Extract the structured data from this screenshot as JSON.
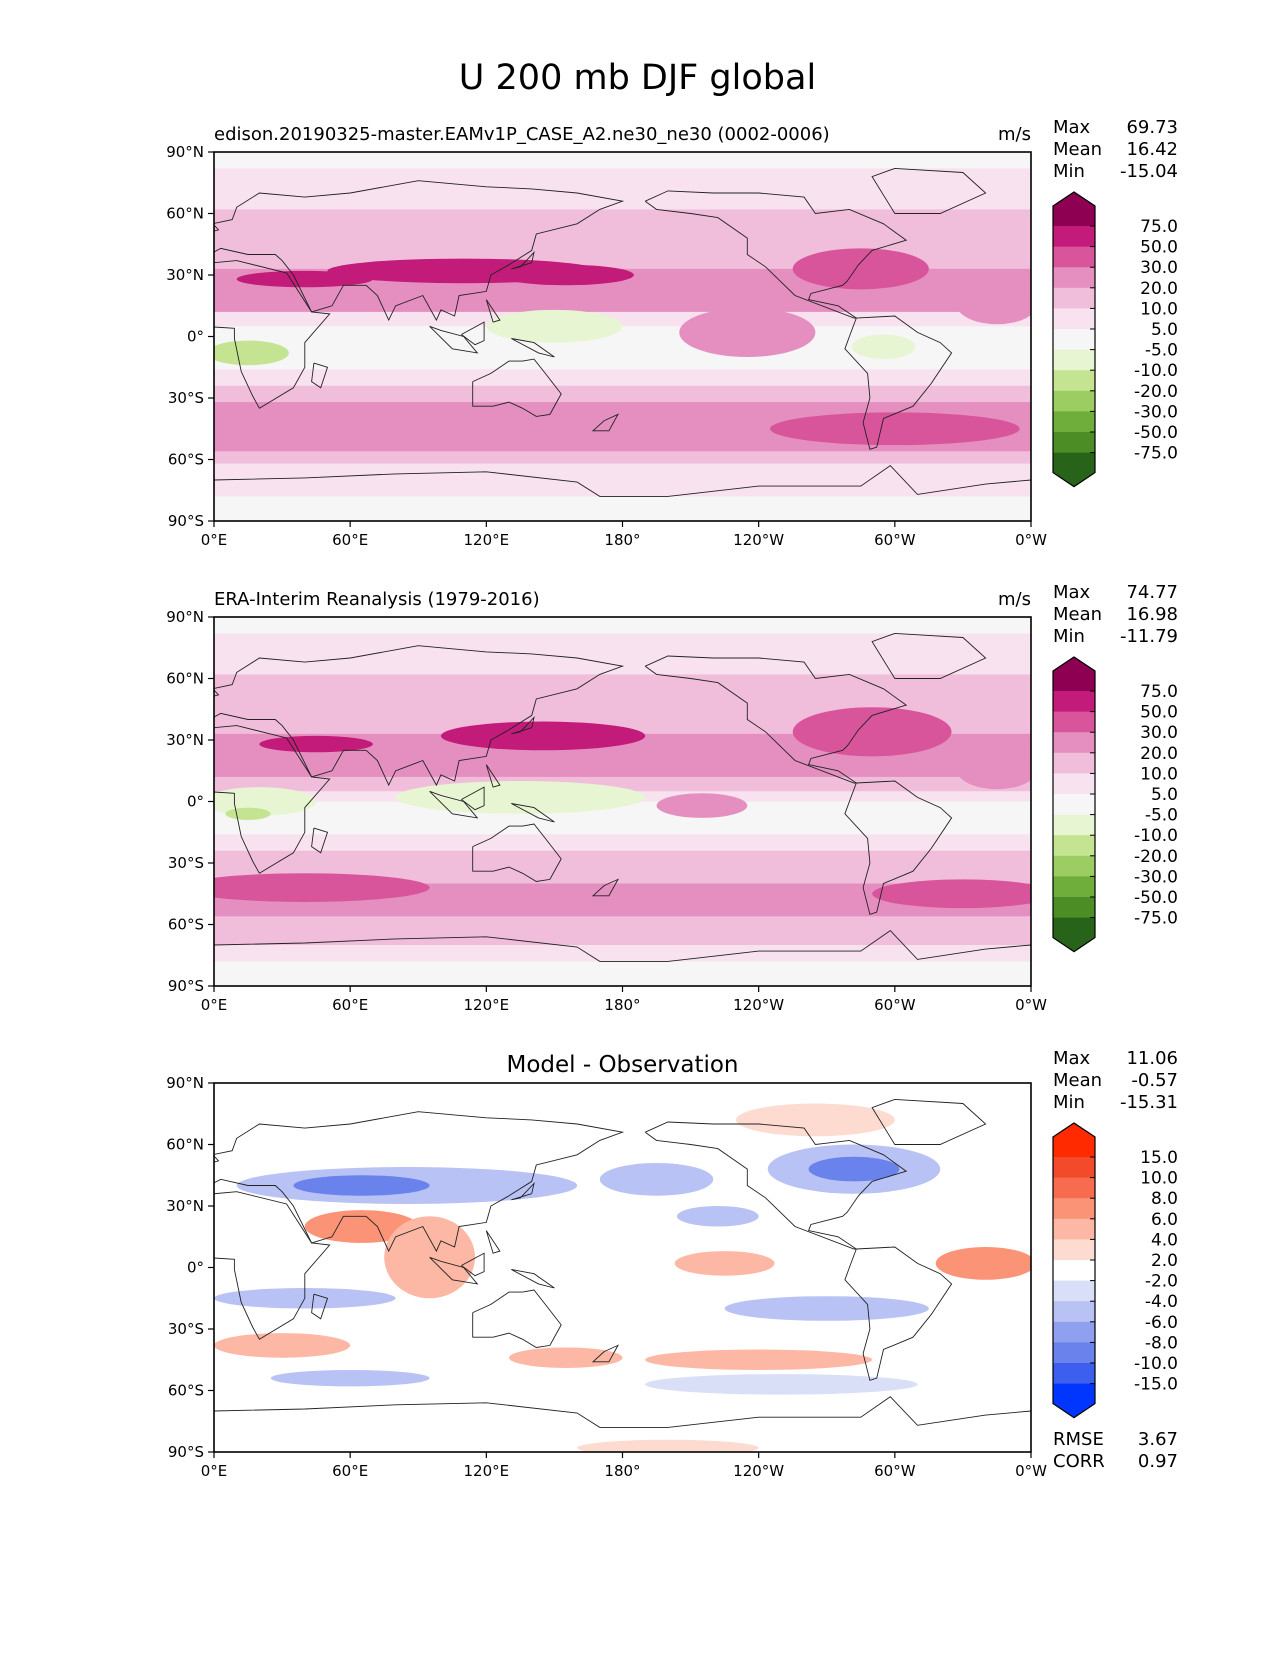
{
  "figure": {
    "title": "U 200 mb DJF global"
  },
  "chart_data": [
    {
      "type": "contour-map",
      "title": "edison.20190325-master.EAMv1P_CASE_A2.ne30_ne30 (0002-0006)",
      "units": "m/s",
      "stats": [
        {
          "label": "Max",
          "value": "69.73"
        },
        {
          "label": "Mean",
          "value": "16.42"
        },
        {
          "label": "Min",
          "value": "-15.04"
        }
      ],
      "extra_stats": [],
      "xlabel": "",
      "ylabel": "",
      "xlim": [
        0,
        360
      ],
      "ylim": [
        -90,
        90
      ],
      "x_ticks": [
        "0°E",
        "60°E",
        "120°E",
        "180°",
        "120°W",
        "60°W",
        "0°W"
      ],
      "y_ticks": [
        "90°N",
        "60°N",
        "30°N",
        "0°",
        "30°S",
        "60°S",
        "90°S"
      ],
      "colorbar": {
        "levels": [
          "75.0",
          "50.0",
          "30.0",
          "20.0",
          "10.0",
          "5.0",
          "-5.0",
          "-10.0",
          "-20.0",
          "-30.0",
          "-50.0",
          "-75.0"
        ],
        "colors": [
          "#8e0152",
          "#c21b79",
          "#d9559b",
          "#e48fc0",
          "#f0bedb",
          "#f9e2ef",
          "#f6f6f6",
          "#e8f5d3",
          "#c4e492",
          "#9bcd63",
          "#6fae3b",
          "#4c8d26",
          "#276419"
        ]
      },
      "bands": [
        {
          "lat": 90,
          "c": 6
        },
        {
          "lat": 82,
          "c": 5
        },
        {
          "lat": 72,
          "c": 5
        },
        {
          "lat": 62,
          "c": 4
        },
        {
          "lat": 52,
          "c": 4
        },
        {
          "lat": 42,
          "c": 4
        },
        {
          "lat": 33,
          "c": 3
        },
        {
          "lat": 26,
          "c": 3
        },
        {
          "lat": 20,
          "c": 3
        },
        {
          "lat": 12,
          "c": 5
        },
        {
          "lat": 5,
          "c": 6
        },
        {
          "lat": 0,
          "c": 6
        },
        {
          "lat": -8,
          "c": 6
        },
        {
          "lat": -16,
          "c": 5
        },
        {
          "lat": -24,
          "c": 4
        },
        {
          "lat": -32,
          "c": 3
        },
        {
          "lat": -40,
          "c": 3
        },
        {
          "lat": -48,
          "c": 3
        },
        {
          "lat": -56,
          "c": 4
        },
        {
          "lat": -62,
          "c": 5
        },
        {
          "lat": -70,
          "c": 5
        },
        {
          "lat": -78,
          "c": 6
        },
        {
          "lat": -90,
          "c": 6
        }
      ],
      "blobs": [
        {
          "lon": 110,
          "lat": 32,
          "rx": 60,
          "ry": 6,
          "c": 1
        },
        {
          "lon": 40,
          "lat": 28,
          "rx": 30,
          "ry": 4,
          "c": 1
        },
        {
          "lon": 155,
          "lat": 30,
          "rx": 30,
          "ry": 5,
          "c": 1
        },
        {
          "lon": 285,
          "lat": 33,
          "rx": 30,
          "ry": 10,
          "c": 2
        },
        {
          "lon": 345,
          "lat": 16,
          "rx": 18,
          "ry": 10,
          "c": 3
        },
        {
          "lon": 150,
          "lat": 5,
          "rx": 30,
          "ry": 8,
          "c": 7
        },
        {
          "lon": 15,
          "lat": -8,
          "rx": 18,
          "ry": 6,
          "c": 8
        },
        {
          "lon": 295,
          "lat": -5,
          "rx": 14,
          "ry": 6,
          "c": 7
        },
        {
          "lon": 235,
          "lat": 2,
          "rx": 30,
          "ry": 12,
          "c": 3
        },
        {
          "lon": 300,
          "lat": -45,
          "rx": 55,
          "ry": 8,
          "c": 2
        }
      ]
    },
    {
      "type": "contour-map",
      "title": "ERA-Interim Reanalysis (1979-2016)",
      "units": "m/s",
      "stats": [
        {
          "label": "Max",
          "value": "74.77"
        },
        {
          "label": "Mean",
          "value": "16.98"
        },
        {
          "label": "Min",
          "value": "-11.79"
        }
      ],
      "extra_stats": [],
      "xlabel": "",
      "ylabel": "",
      "xlim": [
        0,
        360
      ],
      "ylim": [
        -90,
        90
      ],
      "x_ticks": [
        "0°E",
        "60°E",
        "120°E",
        "180°",
        "120°W",
        "60°W",
        "0°W"
      ],
      "y_ticks": [
        "90°N",
        "60°N",
        "30°N",
        "0°",
        "30°S",
        "60°S",
        "90°S"
      ],
      "colorbar": {
        "levels": [
          "75.0",
          "50.0",
          "30.0",
          "20.0",
          "10.0",
          "5.0",
          "-5.0",
          "-10.0",
          "-20.0",
          "-30.0",
          "-50.0",
          "-75.0"
        ],
        "colors": [
          "#8e0152",
          "#c21b79",
          "#d9559b",
          "#e48fc0",
          "#f0bedb",
          "#f9e2ef",
          "#f6f6f6",
          "#e8f5d3",
          "#c4e492",
          "#9bcd63",
          "#6fae3b",
          "#4c8d26",
          "#276419"
        ]
      },
      "bands": [
        {
          "lat": 90,
          "c": 6
        },
        {
          "lat": 82,
          "c": 5
        },
        {
          "lat": 72,
          "c": 5
        },
        {
          "lat": 62,
          "c": 4
        },
        {
          "lat": 52,
          "c": 4
        },
        {
          "lat": 42,
          "c": 4
        },
        {
          "lat": 33,
          "c": 3
        },
        {
          "lat": 26,
          "c": 3
        },
        {
          "lat": 20,
          "c": 3
        },
        {
          "lat": 12,
          "c": 4
        },
        {
          "lat": 5,
          "c": 5
        },
        {
          "lat": 0,
          "c": 6
        },
        {
          "lat": -8,
          "c": 6
        },
        {
          "lat": -16,
          "c": 5
        },
        {
          "lat": -24,
          "c": 4
        },
        {
          "lat": -32,
          "c": 4
        },
        {
          "lat": -40,
          "c": 3
        },
        {
          "lat": -48,
          "c": 3
        },
        {
          "lat": -56,
          "c": 4
        },
        {
          "lat": -62,
          "c": 4
        },
        {
          "lat": -70,
          "c": 5
        },
        {
          "lat": -78,
          "c": 6
        },
        {
          "lat": -90,
          "c": 6
        }
      ],
      "blobs": [
        {
          "lon": 145,
          "lat": 32,
          "rx": 45,
          "ry": 7,
          "c": 1
        },
        {
          "lon": 45,
          "lat": 28,
          "rx": 25,
          "ry": 4,
          "c": 1
        },
        {
          "lon": 290,
          "lat": 34,
          "rx": 35,
          "ry": 12,
          "c": 2
        },
        {
          "lon": 345,
          "lat": 16,
          "rx": 18,
          "ry": 10,
          "c": 3
        },
        {
          "lon": 135,
          "lat": 2,
          "rx": 55,
          "ry": 8,
          "c": 7
        },
        {
          "lon": 20,
          "lat": 0,
          "rx": 25,
          "ry": 7,
          "c": 7
        },
        {
          "lon": 15,
          "lat": -6,
          "rx": 10,
          "ry": 3,
          "c": 8
        },
        {
          "lon": 215,
          "lat": -2,
          "rx": 20,
          "ry": 6,
          "c": 3
        },
        {
          "lon": 330,
          "lat": -45,
          "rx": 40,
          "ry": 7,
          "c": 2
        },
        {
          "lon": 40,
          "lat": -42,
          "rx": 55,
          "ry": 7,
          "c": 2
        }
      ]
    },
    {
      "type": "contour-map",
      "title": "Model - Observation",
      "units": "",
      "stats": [
        {
          "label": "Max",
          "value": "11.06"
        },
        {
          "label": "Mean",
          "value": "-0.57"
        },
        {
          "label": "Min",
          "value": "-15.31"
        }
      ],
      "extra_stats": [
        {
          "label": "RMSE",
          "value": "3.67"
        },
        {
          "label": "CORR",
          "value": "0.97"
        }
      ],
      "xlabel": "",
      "ylabel": "",
      "xlim": [
        0,
        360
      ],
      "ylim": [
        -90,
        90
      ],
      "x_ticks": [
        "0°E",
        "60°E",
        "120°E",
        "180°",
        "120°W",
        "60°W",
        "0°W"
      ],
      "y_ticks": [
        "90°N",
        "60°N",
        "30°N",
        "0°",
        "30°S",
        "60°S",
        "90°S"
      ],
      "colorbar": {
        "levels": [
          "15.0",
          "10.0",
          "8.0",
          "6.0",
          "4.0",
          "2.0",
          "-2.0",
          "-4.0",
          "-6.0",
          "-8.0",
          "-10.0",
          "-15.0"
        ],
        "colors": [
          "#ff2a00",
          "#f24a2b",
          "#f76b4f",
          "#fb9377",
          "#fcb8a4",
          "#fddbd0",
          "#ffffff",
          "#dadff8",
          "#b8c2f4",
          "#8ea0ee",
          "#6982ec",
          "#3c5ff0",
          "#0036ff"
        ]
      },
      "bands": [
        {
          "lat": 90,
          "c": 6
        }
      ],
      "blobs": [
        {
          "lon": 85,
          "lat": 40,
          "rx": 75,
          "ry": 9,
          "c": 8
        },
        {
          "lon": 65,
          "lat": 40,
          "rx": 30,
          "ry": 5,
          "c": 10
        },
        {
          "lon": 195,
          "lat": 43,
          "rx": 25,
          "ry": 8,
          "c": 8
        },
        {
          "lon": 282,
          "lat": 48,
          "rx": 38,
          "ry": 12,
          "c": 8
        },
        {
          "lon": 282,
          "lat": 48,
          "rx": 20,
          "ry": 6,
          "c": 10
        },
        {
          "lon": 265,
          "lat": 72,
          "rx": 35,
          "ry": 8,
          "c": 5
        },
        {
          "lon": 65,
          "lat": 20,
          "rx": 25,
          "ry": 8,
          "c": 3
        },
        {
          "lon": 95,
          "lat": 5,
          "rx": 20,
          "ry": 20,
          "c": 4
        },
        {
          "lon": 225,
          "lat": 2,
          "rx": 22,
          "ry": 6,
          "c": 4
        },
        {
          "lon": 340,
          "lat": 2,
          "rx": 22,
          "ry": 8,
          "c": 3
        },
        {
          "lon": 222,
          "lat": 25,
          "rx": 18,
          "ry": 5,
          "c": 8
        },
        {
          "lon": 40,
          "lat": -15,
          "rx": 40,
          "ry": 5,
          "c": 8
        },
        {
          "lon": 270,
          "lat": -20,
          "rx": 45,
          "ry": 6,
          "c": 8
        },
        {
          "lon": 30,
          "lat": -38,
          "rx": 30,
          "ry": 6,
          "c": 4
        },
        {
          "lon": 155,
          "lat": -44,
          "rx": 25,
          "ry": 5,
          "c": 4
        },
        {
          "lon": 240,
          "lat": -45,
          "rx": 50,
          "ry": 5,
          "c": 4
        },
        {
          "lon": 60,
          "lat": -54,
          "rx": 35,
          "ry": 4,
          "c": 8
        },
        {
          "lon": 250,
          "lat": -57,
          "rx": 60,
          "ry": 5,
          "c": 7
        },
        {
          "lon": 200,
          "lat": -88,
          "rx": 40,
          "ry": 4,
          "c": 5
        }
      ]
    }
  ]
}
